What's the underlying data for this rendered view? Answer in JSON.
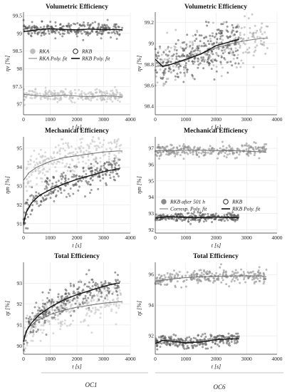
{
  "columns": [
    "OC1",
    "OC6"
  ],
  "chart_data": [
    {
      "type": "scatter",
      "title": "Volumetric Efficiency",
      "column": "OC1",
      "xlabel": "t [s]",
      "ylabel": "ηv [%]",
      "xlim": [
        0,
        4000
      ],
      "ylim": [
        96.7,
        99.6
      ],
      "xticks": [
        0,
        1000,
        2000,
        3000,
        4000
      ],
      "yticks": [
        97,
        97.5,
        98,
        98.5,
        99,
        99.5
      ],
      "grid": true,
      "legend_placement": "center",
      "legend": [
        "RKA",
        "RKB",
        "RKA Poly. fit",
        "RKB Poly. fit"
      ],
      "series": [
        {
          "name": "RKA",
          "kind": "scatter",
          "color": "#bdbdbd",
          "x_range": [
            0,
            3700
          ],
          "y_center": 97.25,
          "y_spread": 0.08
        },
        {
          "name": "RKB",
          "kind": "scatter",
          "color": "#555555",
          "x_range": [
            0,
            3700
          ],
          "y_center": 99.1,
          "y_spread": 0.1
        },
        {
          "name": "RKA Poly. fit",
          "kind": "line",
          "color": "#7a7a7a",
          "x": [
            0,
            500,
            1000,
            1500,
            2000,
            2500,
            3000,
            3500,
            3700
          ],
          "y": [
            97.28,
            97.24,
            97.22,
            97.26,
            97.23,
            97.21,
            97.24,
            97.22,
            97.2
          ]
        },
        {
          "name": "RKB Poly. fit",
          "kind": "line",
          "color": "#111111",
          "x": [
            0,
            500,
            1000,
            1500,
            2000,
            2500,
            3000,
            3500,
            3700
          ],
          "y": [
            99.05,
            99.1,
            99.13,
            99.11,
            99.1,
            99.12,
            99.1,
            99.11,
            99.1
          ]
        }
      ]
    },
    {
      "type": "scatter",
      "title": "Volumetric Efficiency",
      "column": "OC6",
      "xlabel": "t [s]",
      "ylabel": "ηv [%]",
      "xlim": [
        0,
        4000
      ],
      "ylim": [
        98.32,
        99.3
      ],
      "xticks": [
        0,
        1000,
        2000,
        3000,
        4000
      ],
      "yticks": [
        98.4,
        98.6,
        98.8,
        99,
        99.2
      ],
      "grid": true,
      "series": [
        {
          "name": "RKA",
          "kind": "scatter",
          "color": "#a8a8a8",
          "x_range": [
            0,
            3700
          ],
          "fit": "oc6v_a",
          "y_spread": 0.1
        },
        {
          "name": "RKB",
          "kind": "scatter",
          "color": "#555555",
          "x_range": [
            0,
            2750
          ],
          "fit": "oc6v_b",
          "y_spread": 0.11
        },
        {
          "name": "RKA Poly. fit",
          "kind": "line",
          "color": "#7a7a7a",
          "x": [
            0,
            500,
            1000,
            1500,
            2000,
            2500,
            3000,
            3500,
            3700
          ],
          "y": [
            98.78,
            98.8,
            98.84,
            98.9,
            98.96,
            99.0,
            99.03,
            99.05,
            99.05
          ]
        },
        {
          "name": "RKB Poly. fit",
          "kind": "line",
          "color": "#111111",
          "x": [
            0,
            250,
            500,
            1000,
            1500,
            2000,
            2500,
            2750
          ],
          "y": [
            98.85,
            98.78,
            98.8,
            98.85,
            98.9,
            98.98,
            99.02,
            99.04
          ]
        }
      ]
    },
    {
      "type": "scatter",
      "title": "Mechanical Efficiency",
      "column": "OC1",
      "xlabel": "t [s]",
      "ylabel": "ηm [%]",
      "xlim": [
        0,
        4000
      ],
      "ylim": [
        90.5,
        95.6
      ],
      "xticks": [
        0,
        1000,
        2000,
        3000,
        4000
      ],
      "yticks": [
        91,
        92,
        93,
        94,
        95
      ],
      "grid": true,
      "series": [
        {
          "name": "RKA",
          "kind": "scatter",
          "color": "#c2c2c2",
          "x_range": [
            0,
            3700
          ],
          "fit": "oc1m_a",
          "y_spread": 0.45
        },
        {
          "name": "RKB",
          "kind": "scatter",
          "color": "#5a5a5a",
          "x_range": [
            0,
            3600
          ],
          "fit": "oc1m_b",
          "y_spread": 0.35
        },
        {
          "name": "RKA Poly. fit",
          "kind": "line",
          "color": "#6e6e6e",
          "x": [
            0,
            200,
            500,
            1000,
            1500,
            2000,
            2500,
            3000,
            3500,
            3700
          ],
          "y": [
            93.3,
            93.7,
            94.0,
            94.3,
            94.5,
            94.6,
            94.7,
            94.8,
            94.85,
            94.85
          ]
        },
        {
          "name": "RKB Poly. fit",
          "kind": "line",
          "color": "#111111",
          "x": [
            0,
            100,
            300,
            600,
            1000,
            1500,
            2000,
            2500,
            3000,
            3500,
            3600
          ],
          "y": [
            91.0,
            91.6,
            92.1,
            92.5,
            92.8,
            93.1,
            93.35,
            93.55,
            93.75,
            93.9,
            93.9
          ]
        }
      ]
    },
    {
      "type": "scatter",
      "title": "Mechanical Efficiency",
      "column": "OC6",
      "xlabel": "t [s]",
      "ylabel": "ηm [%]",
      "xlim": [
        0,
        4000
      ],
      "ylim": [
        91.8,
        97.7
      ],
      "xticks": [
        0,
        1000,
        2000,
        3000,
        4000
      ],
      "yticks": [
        92,
        93,
        94,
        95,
        96,
        97
      ],
      "grid": true,
      "legend_placement": "center",
      "legend": [
        "RKB after 501 h",
        "RKB",
        "Corresp. Poly. fit",
        "RKB Poly. fit"
      ],
      "series": [
        {
          "name": "RKB after 501 h",
          "kind": "scatter",
          "color": "#8c8c8c",
          "x_range": [
            0,
            3650
          ],
          "y_center": 96.85,
          "y_spread": 0.2
        },
        {
          "name": "RKB",
          "kind": "scatter",
          "color": "#5a5a5a",
          "x_range": [
            0,
            2750
          ],
          "y_center": 92.75,
          "y_spread": 0.13
        },
        {
          "name": "Corresp. Poly. fit",
          "kind": "line",
          "color": "#6e6e6e",
          "x": [
            0,
            500,
            1000,
            1500,
            2000,
            2500,
            3000,
            3500,
            3650
          ],
          "y": [
            96.85,
            96.85,
            96.88,
            96.88,
            96.85,
            96.85,
            96.82,
            96.78,
            96.75
          ]
        },
        {
          "name": "RKB Poly. fit",
          "kind": "line",
          "color": "#111111",
          "x": [
            0,
            400,
            800,
            1200,
            1600,
            2000,
            2400,
            2750
          ],
          "y": [
            92.72,
            92.8,
            92.78,
            92.74,
            92.76,
            92.78,
            92.76,
            92.74
          ]
        }
      ]
    },
    {
      "type": "scatter",
      "title": "Total Efficiency",
      "column": "OC1",
      "xlabel": "t [s]",
      "ylabel": "ηt [%]",
      "xlim": [
        0,
        4000
      ],
      "ylim": [
        89.6,
        94.0
      ],
      "xticks": [
        0,
        1000,
        2000,
        3000,
        4000
      ],
      "yticks": [
        90,
        91,
        92,
        93
      ],
      "grid": true,
      "series": [
        {
          "name": "RKA",
          "kind": "scatter",
          "color": "#c2c2c2",
          "x_range": [
            0,
            3700
          ],
          "fit": "oc1t_a",
          "y_spread": 0.4
        },
        {
          "name": "RKB",
          "kind": "scatter",
          "color": "#5a5a5a",
          "x_range": [
            0,
            3600
          ],
          "fit": "oc1t_b",
          "y_spread": 0.35
        },
        {
          "name": "RKA Poly. fit",
          "kind": "line",
          "color": "#6e6e6e",
          "x": [
            0,
            200,
            500,
            1000,
            1500,
            2000,
            2500,
            3000,
            3500,
            3700
          ],
          "y": [
            90.4,
            90.9,
            91.2,
            91.5,
            91.7,
            91.85,
            91.95,
            92.05,
            92.1,
            92.12
          ]
        },
        {
          "name": "RKB Poly. fit",
          "kind": "line",
          "color": "#111111",
          "x": [
            0,
            100,
            300,
            600,
            1000,
            1500,
            2000,
            2500,
            3000,
            3500,
            3600
          ],
          "y": [
            90.2,
            90.7,
            91.1,
            91.5,
            91.85,
            92.2,
            92.45,
            92.65,
            92.85,
            93.0,
            93.0
          ]
        }
      ]
    },
    {
      "type": "scatter",
      "title": "Total Efficiency",
      "column": "OC6",
      "xlabel": "t [s]",
      "ylabel": "ηt [%]",
      "xlim": [
        0,
        4000
      ],
      "ylim": [
        90.8,
        96.8
      ],
      "xticks": [
        0,
        1000,
        2000,
        3000,
        4000
      ],
      "yticks": [
        92,
        94,
        96
      ],
      "grid": true,
      "series": [
        {
          "name": "RKB after 501 h",
          "kind": "scatter",
          "color": "#8c8c8c",
          "x_range": [
            0,
            3650
          ],
          "fit": "oc6t_a",
          "y_spread": 0.22
        },
        {
          "name": "RKB",
          "kind": "scatter",
          "color": "#5a5a5a",
          "x_range": [
            0,
            2750
          ],
          "fit": "oc6t_b",
          "y_spread": 0.2
        },
        {
          "name": "Corresp. Poly. fit",
          "kind": "line",
          "color": "#6e6e6e",
          "x": [
            0,
            500,
            1000,
            1500,
            2000,
            2500,
            3000,
            3500,
            3650
          ],
          "y": [
            95.55,
            95.7,
            95.8,
            95.85,
            95.88,
            95.9,
            95.92,
            95.9,
            95.85
          ]
        },
        {
          "name": "RKB Poly. fit",
          "kind": "line",
          "color": "#111111",
          "x": [
            0,
            250,
            500,
            1000,
            1500,
            2000,
            2500,
            2750
          ],
          "y": [
            91.5,
            91.7,
            91.65,
            91.55,
            91.6,
            91.75,
            91.8,
            91.8
          ]
        }
      ]
    }
  ]
}
